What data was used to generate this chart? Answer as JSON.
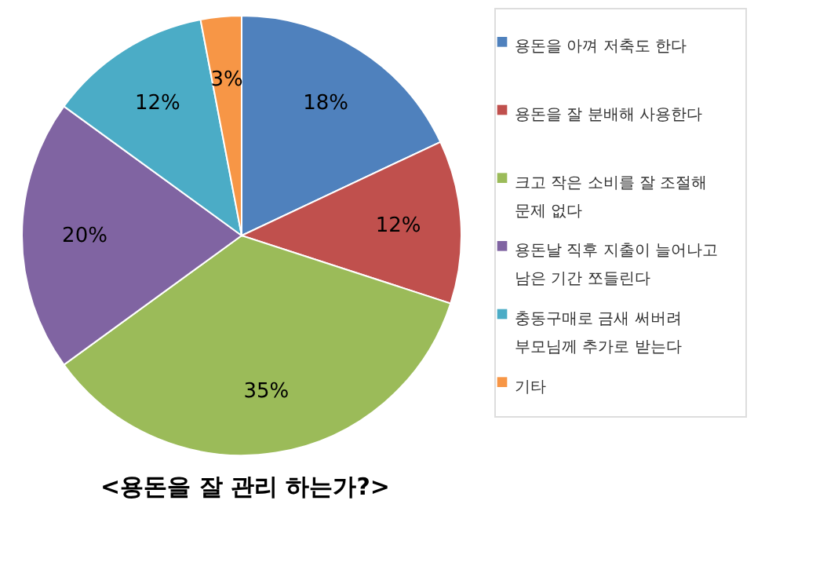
{
  "chart_data": {
    "type": "pie",
    "title": "<용돈을 잘 관리 하는가?>",
    "categories": [
      "용돈을 아껴 저축도 한다",
      "용돈을 잘 분배해 사용한다",
      "크고 작은 소비를 잘 조절해 문제 없다",
      "용돈날 직후 지출이 늘어나고 남은 기간 쪼들린다",
      "충동구매로 금새 써버려 부모님께 추가로 받는다",
      "기타"
    ],
    "values": [
      18,
      12,
      35,
      20,
      12,
      3
    ],
    "value_labels": [
      "18%",
      "12%",
      "35%",
      "20%",
      "12%",
      "3%"
    ],
    "colors": [
      "#4f81bd",
      "#c0504d",
      "#9bbb59",
      "#8064a2",
      "#4bacc6",
      "#f79646"
    ],
    "legend": "right"
  }
}
